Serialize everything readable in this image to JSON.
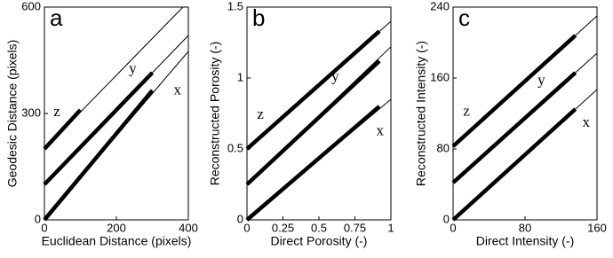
{
  "chart_data": [
    {
      "type": "line",
      "panel": "a",
      "xlabel": "Euclidean Distance (pixels)",
      "ylabel": "Geodesic Distance (pixels)",
      "xlim": [
        0,
        400
      ],
      "ylim": [
        0,
        600
      ],
      "xticks": [
        0,
        200,
        400
      ],
      "yticks": [
        0,
        300,
        600
      ],
      "series": [
        {
          "name": "z",
          "color": "#000000",
          "x": [
            0,
            100
          ],
          "values": [
            200,
            310
          ],
          "reference": {
            "x": [
              0,
              385
            ],
            "values": [
              200,
              600
            ]
          }
        },
        {
          "name": "y",
          "color": "#000000",
          "x": [
            0,
            300
          ],
          "values": [
            100,
            415
          ],
          "reference": {
            "x": [
              0,
              400
            ],
            "values": [
              100,
              520
            ]
          }
        },
        {
          "name": "x",
          "color": "#000000",
          "x": [
            0,
            300
          ],
          "values": [
            0,
            365
          ],
          "reference": {
            "x": [
              0,
              400
            ],
            "values": [
              0,
              475
            ]
          }
        }
      ]
    },
    {
      "type": "line",
      "panel": "b",
      "xlabel": "Direct Porosity (-)",
      "ylabel": "Reconstructed Porosity (-)",
      "xlim": [
        0,
        1
      ],
      "ylim": [
        0,
        1.5
      ],
      "xticks": [
        0,
        0.25,
        0.5,
        0.75,
        1
      ],
      "yticks": [
        0,
        0.5,
        1,
        1.5
      ],
      "series": [
        {
          "name": "z",
          "color": "#000000",
          "x": [
            0,
            0.92
          ],
          "values": [
            0.5,
            1.33
          ],
          "reference": {
            "x": [
              0,
              1
            ],
            "values": [
              0.5,
              1.4
            ]
          }
        },
        {
          "name": "y",
          "color": "#000000",
          "x": [
            0,
            0.92
          ],
          "values": [
            0.25,
            1.12
          ],
          "reference": {
            "x": [
              0,
              1
            ],
            "values": [
              0.25,
              1.22
            ]
          }
        },
        {
          "name": "x",
          "color": "#000000",
          "x": [
            0,
            0.92
          ],
          "values": [
            0,
            0.8
          ],
          "reference": {
            "x": [
              0,
              1
            ],
            "values": [
              0,
              0.85
            ]
          }
        }
      ]
    },
    {
      "type": "line",
      "panel": "c",
      "xlabel": "Direct Intensity (-)",
      "ylabel": "Reconstructed Intensity (-)",
      "xlim": [
        0,
        160
      ],
      "ylim": [
        0,
        240
      ],
      "xticks": [
        0,
        80,
        160
      ],
      "yticks": [
        0,
        80,
        160,
        240
      ],
      "series": [
        {
          "name": "z",
          "color": "#000000",
          "x": [
            0,
            136
          ],
          "values": [
            83,
            208
          ],
          "reference": {
            "x": [
              0,
              160
            ],
            "values": [
              83,
              230
            ]
          }
        },
        {
          "name": "y",
          "color": "#000000",
          "x": [
            0,
            136
          ],
          "values": [
            42,
            166
          ],
          "reference": {
            "x": [
              0,
              160
            ],
            "values": [
              42,
              188
            ]
          }
        },
        {
          "name": "x",
          "color": "#000000",
          "x": [
            0,
            136
          ],
          "values": [
            0,
            125
          ],
          "reference": {
            "x": [
              0,
              160
            ],
            "values": [
              0,
              147
            ]
          }
        }
      ]
    }
  ]
}
